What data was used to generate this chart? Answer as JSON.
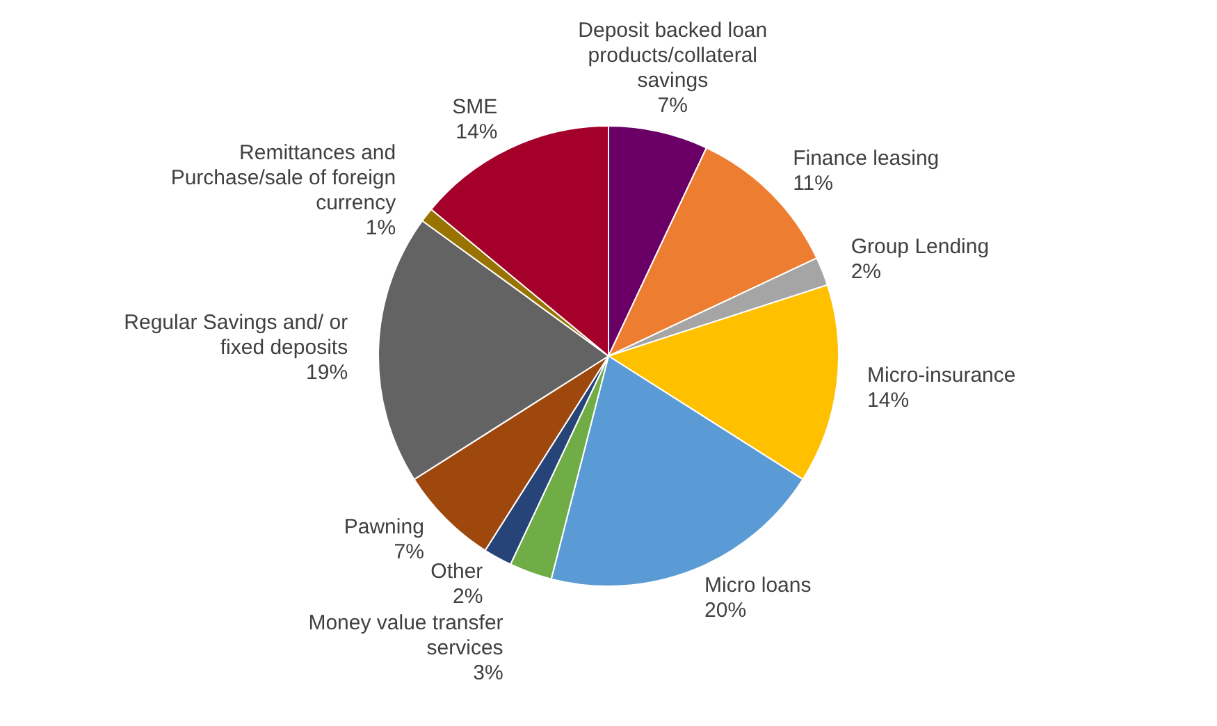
{
  "chart_data": {
    "type": "pie",
    "categories": [
      "Deposit backed loan products/collateral savings",
      "Finance leasing",
      "Group Lending",
      "Micro-insurance",
      "Micro loans",
      "Money value transfer services",
      "Other",
      "Pawning",
      "Regular Savings and/ or fixed deposits",
      "Remittances and Purchase/sale of foreign currency",
      "SME"
    ],
    "values": [
      7,
      11,
      2,
      14,
      20,
      3,
      2,
      7,
      19,
      1,
      14
    ],
    "value_labels": [
      "7%",
      "11%",
      "2%",
      "14%",
      "20%",
      "3%",
      "2%",
      "7%",
      "19%",
      "1%",
      "14%"
    ],
    "colors": [
      "#6a0066",
      "#ed7d31",
      "#a5a5a5",
      "#ffc000",
      "#5b9bd5",
      "#70ad47",
      "#264478",
      "#9e480e",
      "#636363",
      "#997300",
      "#a5002a"
    ],
    "legend": false
  }
}
